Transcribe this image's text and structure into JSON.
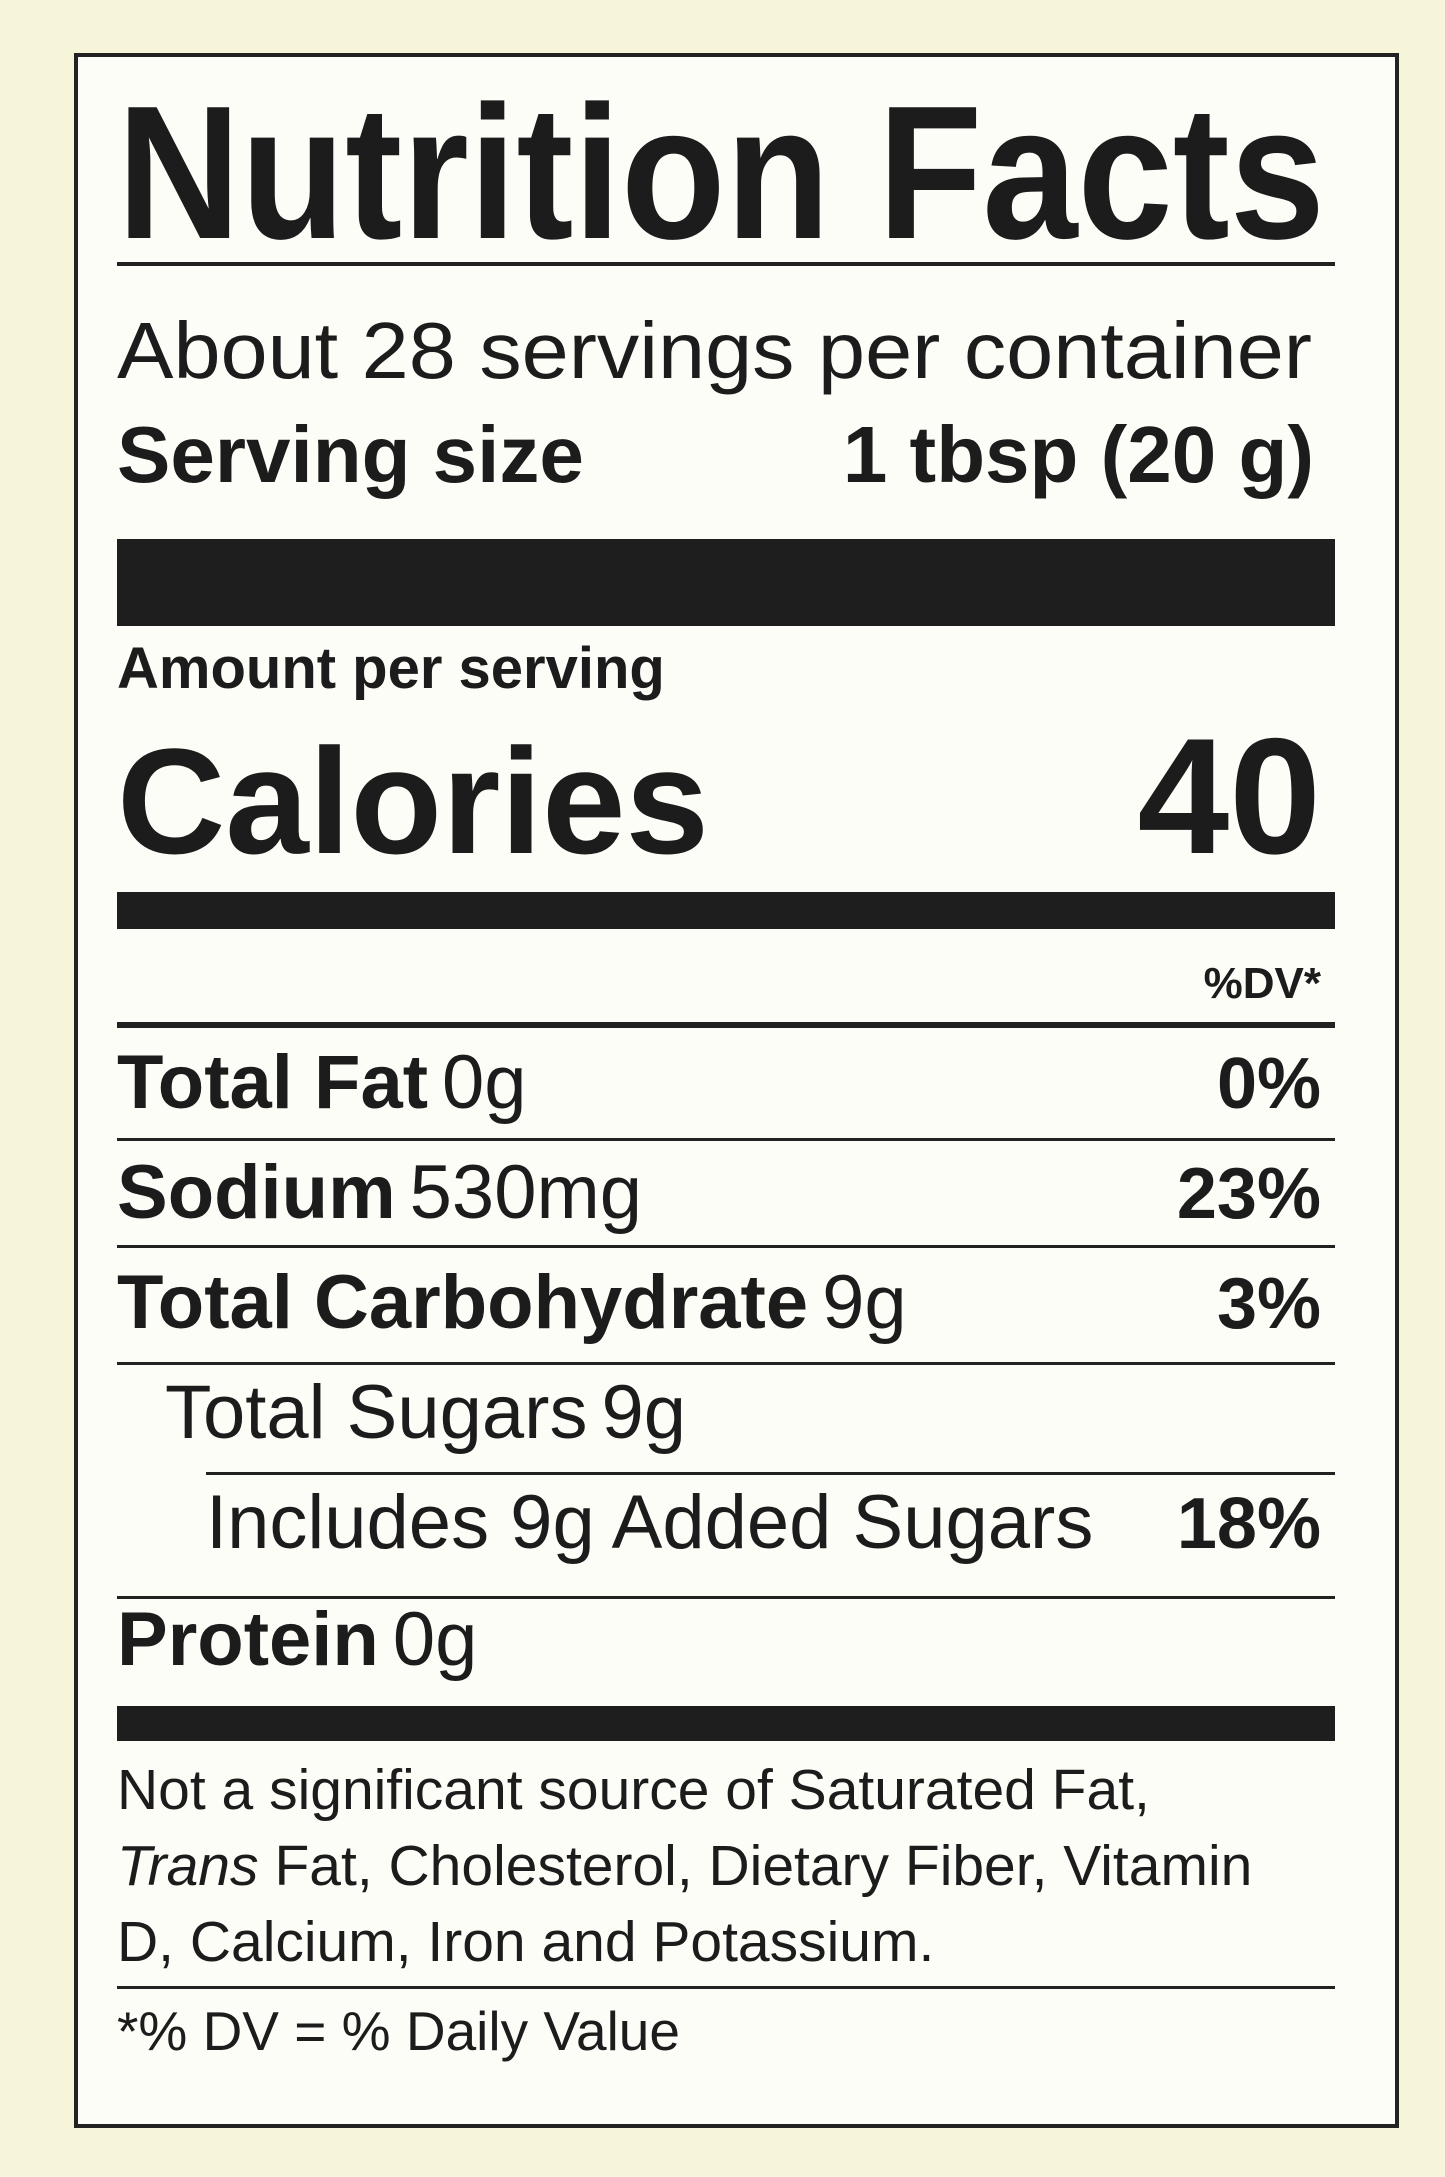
{
  "label": {
    "title": "Nutrition Facts",
    "servings_per_container": "About 28 servings per container",
    "serving_size": {
      "label": "Serving size",
      "value": "1 tbsp (20 g)"
    },
    "amount_per_serving": "Amount per serving",
    "calories": {
      "label": "Calories",
      "value": "40"
    },
    "dv_header": "%DV*",
    "nutrients": [
      {
        "name": "Total Fat",
        "amount": "0g",
        "dv": "0%",
        "bold": true,
        "indent": 0
      },
      {
        "name": "Sodium",
        "amount": "530mg",
        "dv": "23%",
        "bold": true,
        "indent": 0
      },
      {
        "name": "Total Carbohydrate",
        "amount": "9g",
        "dv": "3%",
        "bold": true,
        "indent": 0
      },
      {
        "name": "Total Sugars",
        "amount": "9g",
        "bold": false,
        "indent": 1
      },
      {
        "name": "Includes 9g Added Sugars",
        "dv": "18%",
        "bold": false,
        "indent": 2
      },
      {
        "name": "Protein",
        "amount": "0g",
        "bold": true,
        "indent": 0
      }
    ],
    "footnote": {
      "line1": "Not a significant source of Saturated Fat,",
      "line2_italic": "Trans",
      "line2": "Fat, Cholesterol, Dietary Fiber, Vitamin",
      "line3": "D, Calcium, Iron and Potassium."
    },
    "dv_note": "*% DV = % Daily Value"
  }
}
